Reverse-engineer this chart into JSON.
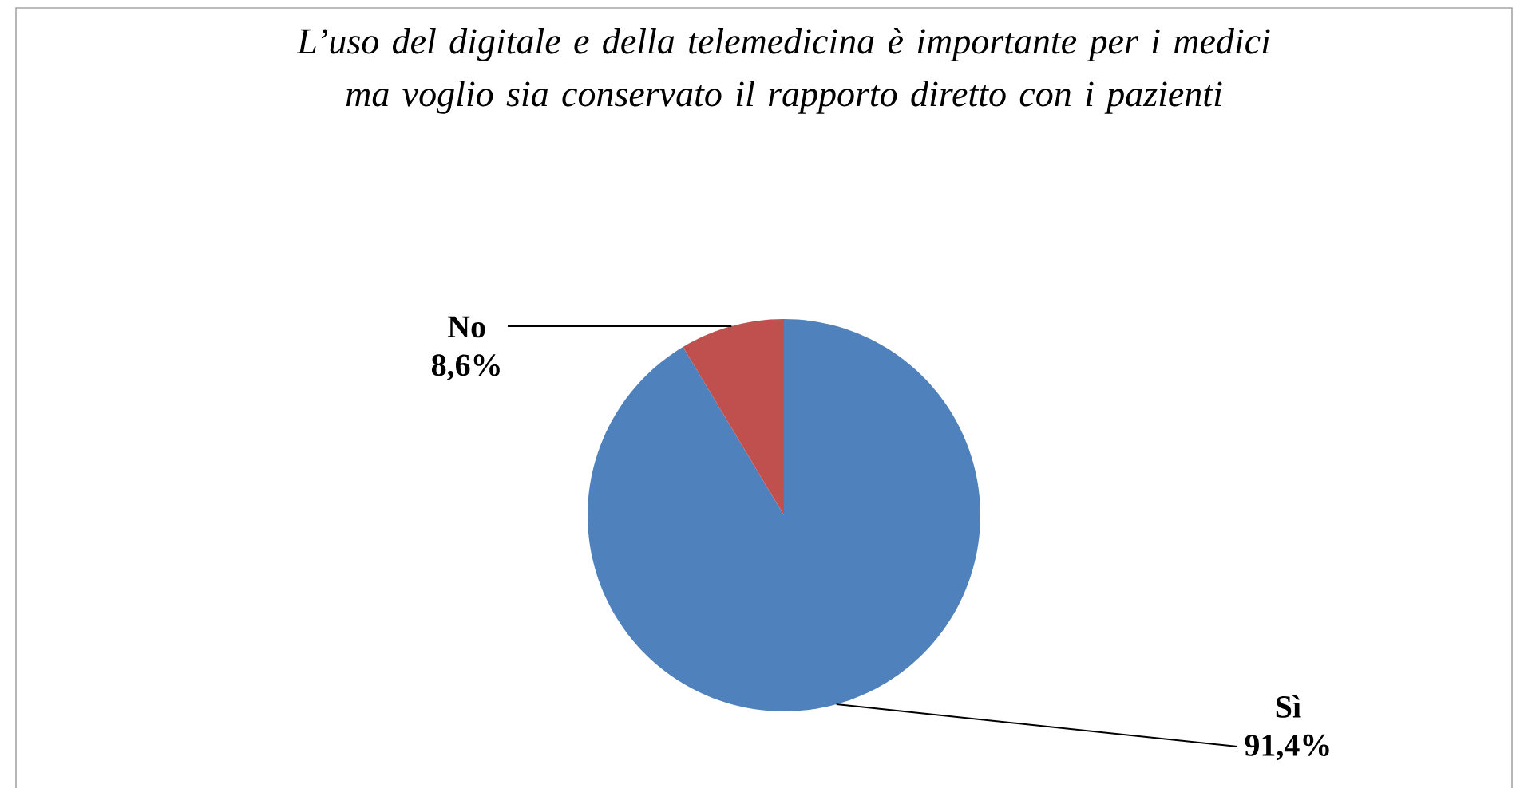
{
  "chart_data": {
    "type": "pie",
    "title": "L’uso del digitale e della telemedicina è importante per i medici ma voglio sia conservato il rapporto diretto con i pazienti",
    "categories": [
      "Sì",
      "No"
    ],
    "values": [
      91.4,
      8.6
    ],
    "value_labels": [
      "91,4%",
      "8,6%"
    ],
    "colors": [
      "#4f81bd",
      "#c0504d"
    ]
  }
}
